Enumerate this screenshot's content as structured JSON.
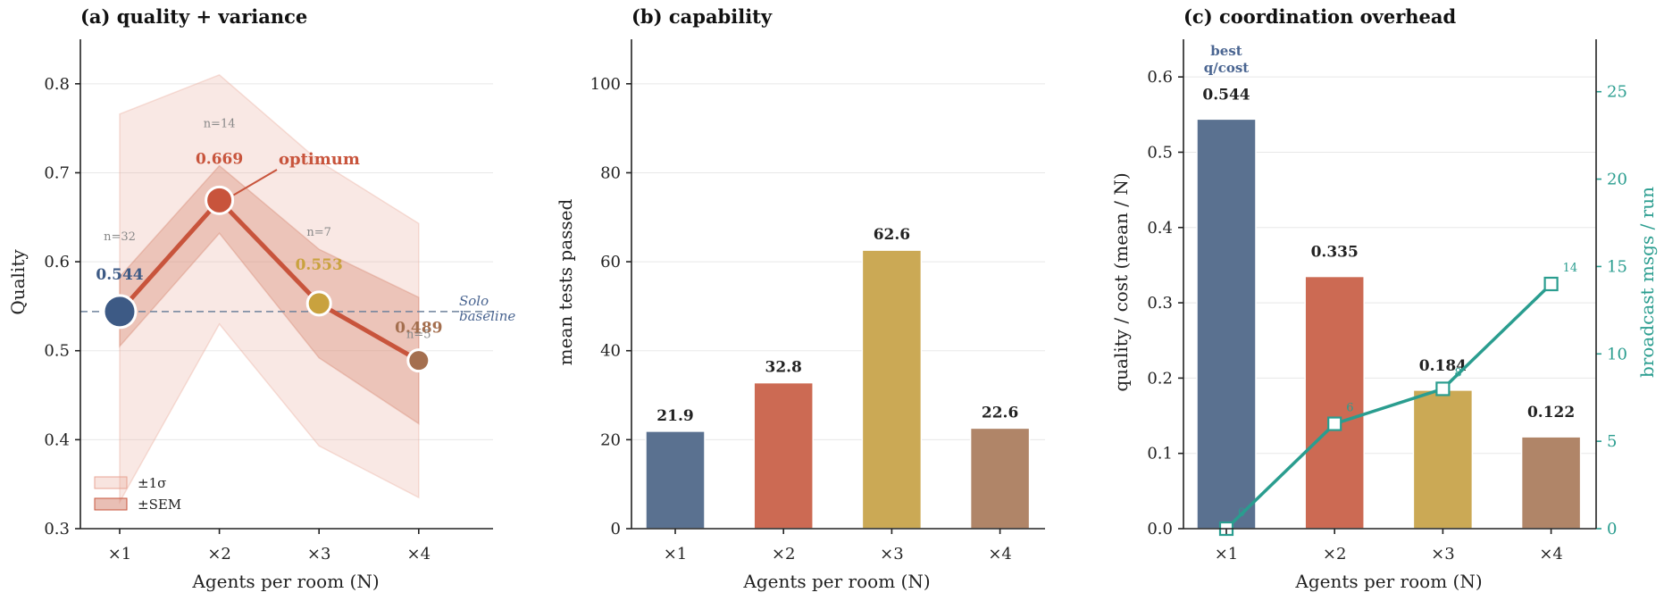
{
  "chart_data": [
    {
      "type": "line",
      "title": "(a) quality + variance",
      "xlabel": "Agents per room (N)",
      "ylabel": "Quality",
      "categories": [
        "×1",
        "×2",
        "×3",
        "×4"
      ],
      "ylim": [
        0.3,
        0.85
      ],
      "yticks": [
        "0.3",
        "0.4",
        "0.5",
        "0.6",
        "0.7",
        "0.8"
      ],
      "grid": true,
      "series": [
        {
          "values": [
            0.544,
            0.669,
            0.553,
            0.489
          ]
        }
      ],
      "value_labels": [
        "0.544",
        "0.669",
        "0.553",
        "0.489"
      ],
      "n_labels": [
        "n=32",
        "n=14",
        "n=7",
        "n=5"
      ],
      "sem_band": {
        "lower": [
          0.505,
          0.632,
          0.492,
          0.418
        ],
        "upper": [
          0.583,
          0.708,
          0.614,
          0.56
        ]
      },
      "sd_band": {
        "lower": [
          0.33,
          0.53,
          0.393,
          0.335
        ],
        "upper": [
          0.766,
          0.81,
          0.713,
          0.643
        ]
      },
      "baseline": {
        "value": 0.544,
        "label_line1": "Solo",
        "label_line2": "baseline"
      },
      "annotation": "optimum",
      "legend": {
        "position": "lower-left",
        "items": [
          "±1σ",
          "±SEM"
        ]
      },
      "point_colors": [
        "#3d5a85",
        "#c8543c",
        "#c9a23e",
        "#a46f4f"
      ],
      "line_color": "#c8543c"
    },
    {
      "type": "bar",
      "title": "(b) capability",
      "xlabel": "Agents per room (N)",
      "ylabel": "mean tests passed",
      "categories": [
        "×1",
        "×2",
        "×3",
        "×4"
      ],
      "values": [
        21.9,
        32.8,
        62.6,
        22.6
      ],
      "value_labels": [
        "21.9",
        "32.8",
        "62.6",
        "22.6"
      ],
      "ylim": [
        0,
        110
      ],
      "yticks": [
        "0",
        "20",
        "40",
        "60",
        "80",
        "100"
      ],
      "grid": true,
      "bar_colors": [
        "#5a7190",
        "#cc6a53",
        "#cba955",
        "#b08568"
      ]
    },
    {
      "type": "bar",
      "title": "(c) coordination overhead",
      "xlabel": "Agents per room (N)",
      "ylabel": "quality / cost (mean / N)",
      "y2label": "broadcast msgs / run",
      "categories": [
        "×1",
        "×2",
        "×3",
        "×4"
      ],
      "values": [
        0.544,
        0.335,
        0.184,
        0.122
      ],
      "value_labels": [
        "0.544",
        "0.335",
        "0.184",
        "0.122"
      ],
      "ylim": [
        0,
        0.65
      ],
      "yticks": [
        "0.0",
        "0.1",
        "0.2",
        "0.3",
        "0.4",
        "0.5",
        "0.6"
      ],
      "y2lim": [
        0,
        28
      ],
      "y2ticks": [
        "0",
        "5",
        "10",
        "15",
        "20",
        "25"
      ],
      "grid": true,
      "bar_colors": [
        "#5a7190",
        "#cc6a53",
        "#cba955",
        "#b08568"
      ],
      "best_label_line1": "best",
      "best_label_line2": "q/cost",
      "series": [
        {
          "values": [
            0,
            6,
            8,
            14
          ]
        }
      ],
      "msg_labels": [
        "0",
        "6",
        "8",
        "14"
      ],
      "line_color": "#2a9d8f"
    }
  ]
}
